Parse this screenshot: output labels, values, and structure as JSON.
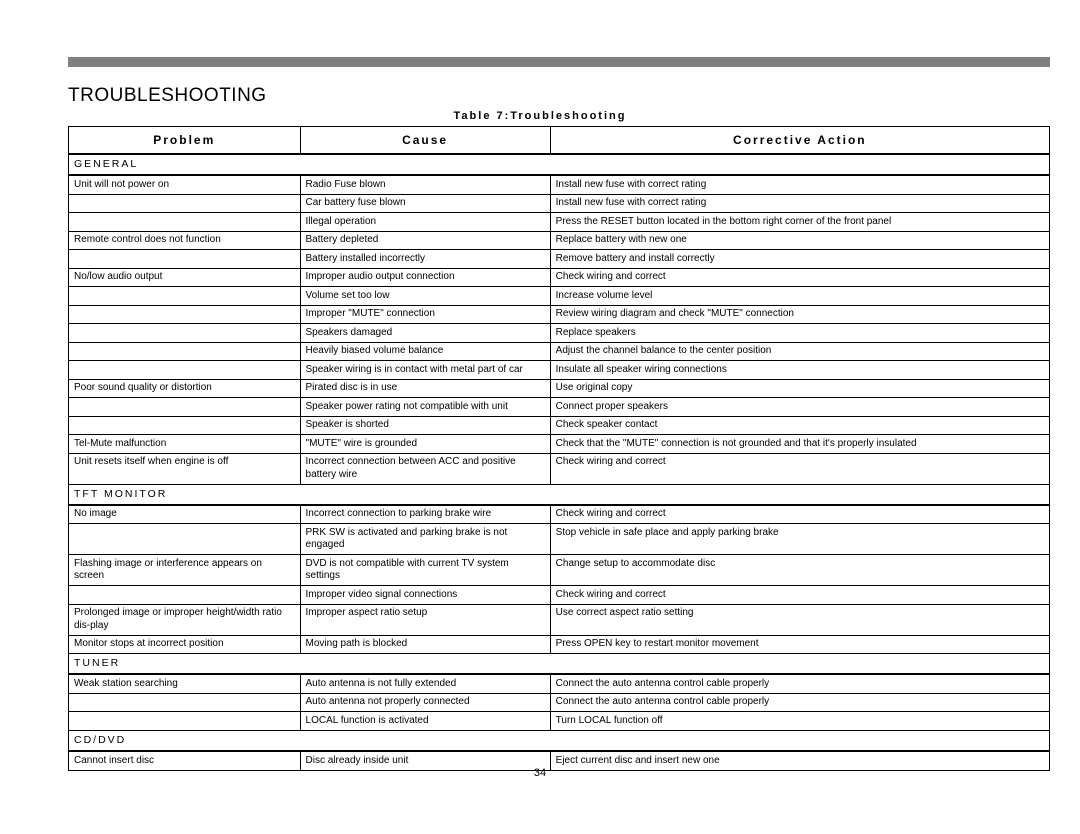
{
  "title": "TROUBLESHOOTING",
  "caption": "Table 7:Troubleshooting",
  "page_number": "34",
  "columns": [
    "Problem",
    "Cause",
    "Corrective Action"
  ],
  "col_widths_pct": [
    23.6,
    25.5,
    50.9
  ],
  "colors": {
    "bar": "#808080",
    "border": "#000000",
    "text": "#000000",
    "bg": "#ffffff"
  },
  "fonts": {
    "title_pt": 19,
    "header_pt": 12,
    "cell_pt": 10,
    "caption_pt": 11
  },
  "sections": [
    {
      "name": "GENERAL",
      "rows": [
        {
          "problem": "Unit will not power on",
          "cause": "Radio Fuse blown",
          "action": "Install new fuse with correct rating"
        },
        {
          "problem": "",
          "cause": "Car battery fuse blown",
          "action": "Install new fuse with correct rating"
        },
        {
          "problem": "",
          "cause": "Illegal operation",
          "action": "Press the RESET button located in the bottom right corner of the front panel"
        },
        {
          "problem": "Remote control does not function",
          "cause": "Battery depleted",
          "action": "Replace battery with new one"
        },
        {
          "problem": "",
          "cause": "Battery installed incorrectly",
          "action": "Remove battery and install correctly"
        },
        {
          "problem": "No/low audio output",
          "cause": "Improper audio output connection",
          "action": "Check wiring and correct"
        },
        {
          "problem": "",
          "cause": "Volume set too low",
          "action": "Increase volume level"
        },
        {
          "problem": "",
          "cause": "Improper \"MUTE\" connection",
          "action": "Review wiring diagram and check \"MUTE\" connection"
        },
        {
          "problem": "",
          "cause": "Speakers damaged",
          "action": "Replace speakers"
        },
        {
          "problem": "",
          "cause": "Heavily biased volume balance",
          "action": "Adjust the channel balance to the center position"
        },
        {
          "problem": "",
          "cause": "Speaker wiring is in contact with metal part of car",
          "action": "Insulate all speaker wiring connections"
        },
        {
          "problem": "Poor sound quality or distortion",
          "cause": "Pirated disc is in use",
          "action": "Use original copy"
        },
        {
          "problem": "",
          "cause": "Speaker power rating not compatible with unit",
          "action": "Connect proper speakers"
        },
        {
          "problem": "",
          "cause": "Speaker is shorted",
          "action": "Check speaker contact"
        },
        {
          "problem": "Tel-Mute malfunction",
          "cause": "\"MUTE\" wire is grounded",
          "action": "Check that the \"MUTE\" connection is not grounded and that it's properly insulated"
        },
        {
          "problem": "Unit resets itself when engine is off",
          "cause": "Incorrect connection between ACC and positive battery wire",
          "action": "Check wiring and correct"
        }
      ]
    },
    {
      "name": "TFT MONITOR",
      "rows": [
        {
          "problem": "No image",
          "cause": "Incorrect connection to parking brake wire",
          "action": "Check wiring and correct"
        },
        {
          "problem": "",
          "cause": "PRK SW is activated and parking brake is not engaged",
          "action": "Stop vehicle in safe place and apply parking brake"
        },
        {
          "problem": "Flashing image or interference appears on screen",
          "cause": "DVD is not compatible with current TV system settings",
          "action": "Change setup to accommodate disc"
        },
        {
          "problem": "",
          "cause": "Improper video signal connections",
          "action": "Check wiring and correct"
        },
        {
          "problem": "Prolonged image or improper height/width ratio dis-play",
          "cause": "Improper aspect ratio setup",
          "action": "Use correct aspect ratio setting"
        },
        {
          "problem": "Monitor stops at incorrect position",
          "cause": "Moving path is blocked",
          "action": "Press OPEN key to restart monitor movement"
        }
      ]
    },
    {
      "name": "TUNER",
      "rows": [
        {
          "problem": "Weak station searching",
          "cause": "Auto antenna is not fully extended",
          "action": "Connect the auto antenna control cable properly"
        },
        {
          "problem": "",
          "cause": "Auto antenna not properly connected",
          "action": "Connect the auto antenna control cable properly"
        },
        {
          "problem": "",
          "cause": "LOCAL function is activated",
          "action": "Turn LOCAL function off"
        }
      ]
    },
    {
      "name": "CD/DVD",
      "rows": [
        {
          "problem": "Cannot insert disc",
          "cause": "Disc already inside unit",
          "action": "Eject current disc and insert new one"
        }
      ]
    }
  ]
}
